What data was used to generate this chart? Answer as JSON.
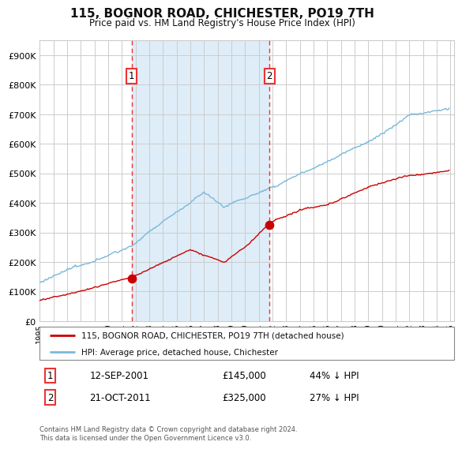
{
  "title": "115, BOGNOR ROAD, CHICHESTER, PO19 7TH",
  "subtitle": "Price paid vs. HM Land Registry's House Price Index (HPI)",
  "legend_line1": "115, BOGNOR ROAD, CHICHESTER, PO19 7TH (detached house)",
  "legend_line2": "HPI: Average price, detached house, Chichester",
  "annotation1_date": "12-SEP-2001",
  "annotation1_price": "£145,000",
  "annotation1_pct": "44% ↓ HPI",
  "annotation1_year": 2001.71,
  "annotation1_value": 145000,
  "annotation2_date": "21-OCT-2011",
  "annotation2_price": "£325,000",
  "annotation2_pct": "27% ↓ HPI",
  "annotation2_year": 2011.79,
  "annotation2_value": 325000,
  "hpi_color": "#7ab8d9",
  "price_color": "#cc0000",
  "marker_color": "#cc0000",
  "shade_color": "#deedf8",
  "vline_color": "#ee3333",
  "grid_color": "#cccccc",
  "background_color": "#ffffff",
  "ylim": [
    0,
    950000
  ],
  "ytick_values": [
    0,
    100000,
    200000,
    300000,
    400000,
    500000,
    600000,
    700000,
    800000,
    900000
  ],
  "ytick_labels": [
    "£0",
    "£100K",
    "£200K",
    "£300K",
    "£400K",
    "£500K",
    "£600K",
    "£700K",
    "£800K",
    "£900K"
  ],
  "footer": "Contains HM Land Registry data © Crown copyright and database right 2024.\nThis data is licensed under the Open Government Licence v3.0.",
  "start_year": 1995,
  "end_year": 2025
}
